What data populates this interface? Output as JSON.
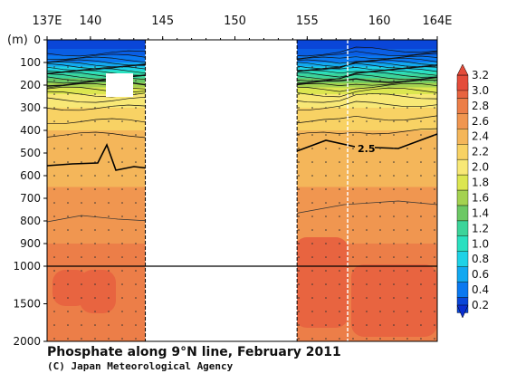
{
  "chart_data": {
    "type": "heatmap",
    "title": "Phosphate along 9°N line, February 2011",
    "credit": "(C) Japan Meteorological Agency",
    "x_tick_labels": [
      "137E",
      "140",
      "145",
      "150",
      "155",
      "160",
      "164E"
    ],
    "x_ticks": [
      137,
      140,
      145,
      150,
      155,
      160,
      164
    ],
    "x_range": [
      137,
      164
    ],
    "no_data_range": [
      143.8,
      154.3
    ],
    "station_break_lon": 157.8,
    "depth_unit_label": "(m)",
    "depth_ticks_upper": [
      0,
      100,
      200,
      300,
      400,
      500,
      600,
      700,
      800,
      900,
      1000
    ],
    "depth_ticks_lower": [
      1500,
      2000
    ],
    "depth_break": 1000,
    "contour_label": "2.5",
    "colorbar_levels": [
      "0.2",
      "0.4",
      "0.6",
      "0.8",
      "1.0",
      "1.2",
      "1.4",
      "1.6",
      "1.8",
      "2.0",
      "2.2",
      "2.4",
      "2.6",
      "2.8",
      "3.0",
      "3.2"
    ],
    "colorbar_colors": [
      "#0a46d8",
      "#0a78f0",
      "#12a8f0",
      "#1ed2e6",
      "#2ae0c0",
      "#3cd49a",
      "#6cc864",
      "#a4d250",
      "#dce650",
      "#f8e876",
      "#f8d264",
      "#f4b65a",
      "#f09650",
      "#ec7e48",
      "#e86440",
      "#e44c3a"
    ],
    "profile_zones": [
      {
        "from": 0,
        "to": 100,
        "value": 0.4
      },
      {
        "from": 100,
        "to": 150,
        "value": 1.0
      },
      {
        "from": 150,
        "to": 200,
        "value": 1.5
      },
      {
        "from": 200,
        "to": 250,
        "value": 1.9
      },
      {
        "from": 250,
        "to": 300,
        "value": 2.1
      },
      {
        "from": 300,
        "to": 400,
        "value": 2.3
      },
      {
        "from": 400,
        "to": 500,
        "value": 2.45
      },
      {
        "from": 500,
        "to": 650,
        "value": 2.55
      },
      {
        "from": 650,
        "to": 900,
        "value": 2.75
      },
      {
        "from": 900,
        "to": 2000,
        "value": 2.85
      }
    ]
  }
}
